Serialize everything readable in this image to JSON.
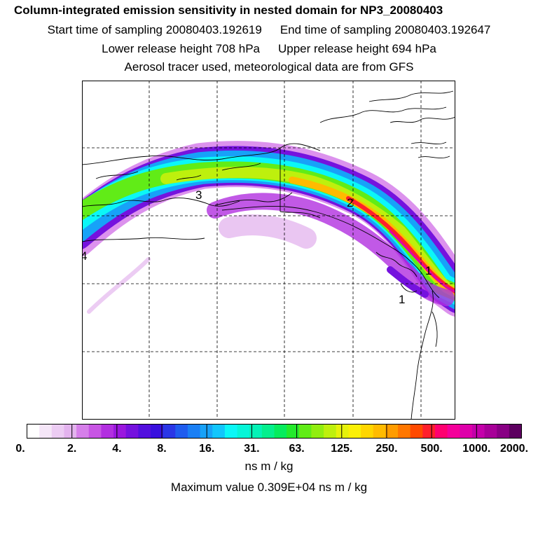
{
  "header": {
    "title": "Column-integrated emission sensitivity in nested domain for NP3_20080403",
    "start_label": "Start time of sampling 20080403.192619",
    "end_label": "End time of sampling 20080403.192647",
    "lower_label": "Lower release height  708 hPa",
    "upper_label": "Upper release height  694 hPa",
    "tracer_line": "Aerosol tracer used, meteorological data are from GFS"
  },
  "map": {
    "markers": [
      {
        "id": "marker-1",
        "label": "1"
      },
      {
        "id": "marker-2",
        "label": "2"
      },
      {
        "id": "marker-3",
        "label": "3"
      },
      {
        "id": "marker-4",
        "label": "4"
      },
      {
        "id": "marker-5",
        "label": "1"
      }
    ]
  },
  "legend": {
    "tick_labels": [
      "0.",
      "2.",
      "4.",
      "8.",
      "16.",
      "31.",
      "63.",
      "125.",
      "250.",
      "500.",
      "1000.",
      "2000."
    ],
    "colors": [
      "#ffffff",
      "#f5e6f8",
      "#ecccf3",
      "#e3b3ee",
      "#d67fea",
      "#c855e4",
      "#b22fe0",
      "#9a17de",
      "#7512de",
      "#5310de",
      "#3910de",
      "#2a36e6",
      "#1f5cee",
      "#1b7ff4",
      "#17a2f8",
      "#12c6fc",
      "#0bf7f7",
      "#06f5d8",
      "#04f2b6",
      "#04ef8d",
      "#06ec5d",
      "#24ea2c",
      "#61ec17",
      "#91ee10",
      "#bef00d",
      "#e6f20b",
      "#fbf006",
      "#ffd600",
      "#ffbb00",
      "#ff9c00",
      "#ff7700",
      "#ff4a00",
      "#ff1f2c",
      "#ff0070",
      "#f4009a",
      "#de00aa",
      "#c400aa",
      "#a70098",
      "#880084",
      "#5d0060"
    ],
    "units": "ns m / kg",
    "max_value": "Maximum value  0.309E+04 ns m / kg"
  }
}
